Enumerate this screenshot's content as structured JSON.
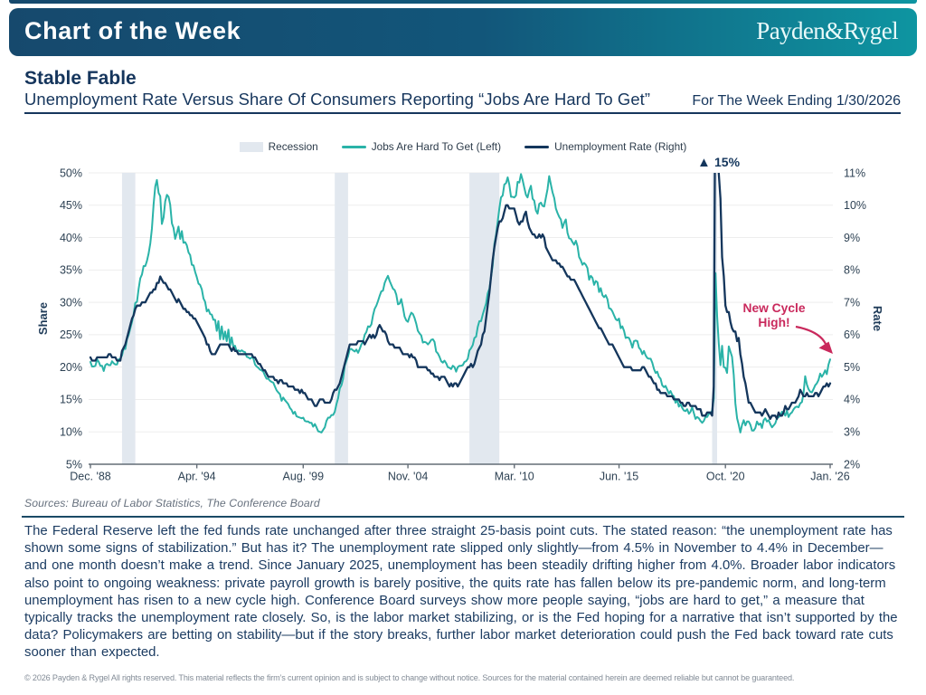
{
  "colors": {
    "navy": "#15355C",
    "teal_line": "#2AB3A8",
    "navy_line": "#14365C",
    "recession_band": "#E2E8EF",
    "gridline": "#EDEDED",
    "axis_line": "#636D76",
    "tick_label": "#2E4254",
    "accent_pink": "#C9295C",
    "header_gradient_left": "#16496D",
    "header_gradient_right": "#0E95A1"
  },
  "header": {
    "title": "Chart of the Week",
    "logo": "Payden&Rygel"
  },
  "title_block": {
    "title": "Stable Fable",
    "subtitle": "Unemployment Rate Versus Share Of Consumers Reporting “Jobs Are Hard To Get”",
    "week_ending": "For The Week Ending 1/30/2026"
  },
  "chart_data": {
    "type": "line",
    "x_start": "Dec 1988",
    "x_end": "Jan 2026",
    "x_frequency": "monthly",
    "x_tick_labels": [
      "Dec. '88",
      "Apr. '94",
      "Aug. '99",
      "Nov. '04",
      "Mar. '10",
      "Jun. '15",
      "Oct. '20",
      "Jan. '26"
    ],
    "x_tick_month_index": [
      0,
      64,
      128,
      191,
      255,
      318,
      382,
      445
    ],
    "left_axis": {
      "label": "Share",
      "ticks": [
        "5%",
        "10%",
        "15%",
        "20%",
        "25%",
        "30%",
        "35%",
        "40%",
        "45%",
        "50%"
      ],
      "range": [
        5,
        50
      ]
    },
    "right_axis": {
      "label": "Rate",
      "ticks": [
        "2%",
        "3%",
        "4%",
        "5%",
        "6%",
        "7%",
        "8%",
        "9%",
        "10%",
        "11%"
      ],
      "range": [
        2,
        11
      ]
    },
    "grid": "horizontal",
    "legend_position": "top-center",
    "legend": [
      {
        "swatch": "band",
        "label": "Recession"
      },
      {
        "swatch": "line-teal",
        "label": "Jobs Are Hard To Get (Left)"
      },
      {
        "swatch": "line-navy",
        "label": "Unemployment Rate (Right)"
      }
    ],
    "recessions_month_index": [
      [
        19,
        27
      ],
      [
        147,
        155
      ],
      [
        228,
        246
      ],
      [
        374,
        377
      ]
    ],
    "series": [
      {
        "name": "Jobs Are Hard To Get (Left)",
        "axis": "left",
        "color": "#2AB3A8",
        "values": [
          20.8,
          20.1,
          20.1,
          20.2,
          21.2,
          20.8,
          20.2,
          20.2,
          19.4,
          20.3,
          20.5,
          20.3,
          20.3,
          20.9,
          20.6,
          20.4,
          20.4,
          21.2,
          21.3,
          21.8,
          22.9,
          22.8,
          24.3,
          25.0,
          26.0,
          27.0,
          28.2,
          29.9,
          30.1,
          32.1,
          33.7,
          34.3,
          35.6,
          35.6,
          36.4,
          37.5,
          39.1,
          41.4,
          45.2,
          47.9,
          48.9,
          46.9,
          46.4,
          42.1,
          43.1,
          45.6,
          46.6,
          46.3,
          45.1,
          42.2,
          41.5,
          39.8,
          40.7,
          41.7,
          39.8,
          41.0,
          39.2,
          39.3,
          38.8,
          37.7,
          37.3,
          35.8,
          35.7,
          34.7,
          33.9,
          32.9,
          32.7,
          32.0,
          30.6,
          30.1,
          28.6,
          28.9,
          28.2,
          28.1,
          27.3,
          27.3,
          25.6,
          27.1,
          24.3,
          26.3,
          24.3,
          25.5,
          24.0,
          25.8,
          23.3,
          24.6,
          23.1,
          23.3,
          22.4,
          22.6,
          22.4,
          22.6,
          22.4,
          22.3,
          21.6,
          21.5,
          21.3,
          21.5,
          21.4,
          20.4,
          20.1,
          19.9,
          19.6,
          19.5,
          19.3,
          18.7,
          18.2,
          18.2,
          17.9,
          17.7,
          17.6,
          17.0,
          16.4,
          16.1,
          15.8,
          14.8,
          15.3,
          14.9,
          14.6,
          14.3,
          13.7,
          13.4,
          12.8,
          13.1,
          12.4,
          12.3,
          12.2,
          12.1,
          12.2,
          11.7,
          11.6,
          11.6,
          11.4,
          11.4,
          10.8,
          11.2,
          10.7,
          10.1,
          10.0,
          9.9,
          10.3,
          10.7,
          11.7,
          12.2,
          12.2,
          12.6,
          12.6,
          13.1,
          14.3,
          15.2,
          16.7,
          17.2,
          18.2,
          20.2,
          21.0,
          21.7,
          22.8,
          22.8,
          22.6,
          22.4,
          22.7,
          22.2,
          22.8,
          23.5,
          23.9,
          25.0,
          25.4,
          26.3,
          26.2,
          26.6,
          28.0,
          29.0,
          29.5,
          30.2,
          31.0,
          31.7,
          31.8,
          33.0,
          33.6,
          34.1,
          33.3,
          32.7,
          32.1,
          31.9,
          31.2,
          29.7,
          29.8,
          30.5,
          29.2,
          27.8,
          27.2,
          27.0,
          27.8,
          28.4,
          28.2,
          27.6,
          26.7,
          25.6,
          25.2,
          24.9,
          23.8,
          23.9,
          23.8,
          23.5,
          23.8,
          24.2,
          24.3,
          23.9,
          22.4,
          22.1,
          21.6,
          20.9,
          20.7,
          21.0,
          20.6,
          20.0,
          19.9,
          19.7,
          20.2,
          20.0,
          19.3,
          20.0,
          20.2,
          20.2,
          20.3,
          20.8,
          20.9,
          21.3,
          22.6,
          22.9,
          23.4,
          24.5,
          24.7,
          26.2,
          27.1,
          27.1,
          28.1,
          29.0,
          29.8,
          31.4,
          32.1,
          33.9,
          35.7,
          39.0,
          40.4,
          42.5,
          44.5,
          46.2,
          46.5,
          48.2,
          48.4,
          49.3,
          48.2,
          46.3,
          46.3,
          46.2,
          46.5,
          48.6,
          48.5,
          49.8,
          48.9,
          47.7,
          46.6,
          46.2,
          47.3,
          48.0,
          46.0,
          45.7,
          44.2,
          43.7,
          45.2,
          45.4,
          44.9,
          44.8,
          46.2,
          47.5,
          49.5,
          48.2,
          47.0,
          46.1,
          44.5,
          43.8,
          43.2,
          42.8,
          41.5,
          42.3,
          42.8,
          40.7,
          39.9,
          39.8,
          39.3,
          38.9,
          39.5,
          38.7,
          37.0,
          36.5,
          35.8,
          36.1,
          35.8,
          35.3,
          33.5,
          34.1,
          33.8,
          32.7,
          33.3,
          33.1,
          31.6,
          32.2,
          31.1,
          30.8,
          31.1,
          30.5,
          29.1,
          29.0,
          28.6,
          28.0,
          27.4,
          27.2,
          27.5,
          26.0,
          26.3,
          25.6,
          24.5,
          24.6,
          24.5,
          23.9,
          23.0,
          24.0,
          24.1,
          24.0,
          23.0,
          22.7,
          22.0,
          22.5,
          21.8,
          21.4,
          21.3,
          21.3,
          20.7,
          19.7,
          19.1,
          19.3,
          18.5,
          18.2,
          17.2,
          16.9,
          17.1,
          16.5,
          15.9,
          16.3,
          15.7,
          15.5,
          14.5,
          14.9,
          13.9,
          14.3,
          13.7,
          13.3,
          13.2,
          13.5,
          12.8,
          13.1,
          13.8,
          12.9,
          12.0,
          12.3,
          12.1,
          11.7,
          11.4,
          11.7,
          12.3,
          12.3,
          12.8,
          12.8,
          13.3,
          15.1,
          34.5,
          27.9,
          23.7,
          20.3,
          23.3,
          20.0,
          19.9,
          19.1,
          23.2,
          22.4,
          21.6,
          18.8,
          14.4,
          12.1,
          11.1,
          9.9,
          11.1,
          11.8,
          11.0,
          11.6,
          11.6,
          11.1,
          10.2,
          10.2,
          10.6,
          11.6,
          11.1,
          11.3,
          10.6,
          11.8,
          12.1,
          11.6,
          11.8,
          11.2,
          10.7,
          11.0,
          11.3,
          12.1,
          12.3,
          12.5,
          13.1,
          13.0,
          12.5,
          13.3,
          12.3,
          12.8,
          13.0,
          13.5,
          13.8,
          13.9,
          13.8,
          14.4,
          14.6,
          16.0,
          18.6,
          17.3,
          16.6,
          16.2,
          16.1,
          16.6,
          17.2,
          17.5,
          18.0,
          19.0,
          18.5,
          18.9,
          19.5,
          18.9,
          20.4,
          21.2
        ]
      },
      {
        "name": "Unemployment Rate (Right)",
        "axis": "right",
        "color": "#14365C",
        "values": [
          5.3,
          5.2,
          5.2,
          5.2,
          5.3,
          5.3,
          5.3,
          5.3,
          5.3,
          5.3,
          5.3,
          5.4,
          5.4,
          5.3,
          5.3,
          5.3,
          5.2,
          5.2,
          5.2,
          5.5,
          5.6,
          5.7,
          5.9,
          6.1,
          6.3,
          6.5,
          6.6,
          6.8,
          6.9,
          6.9,
          6.9,
          7.0,
          7.0,
          7.0,
          7.1,
          7.2,
          7.3,
          7.3,
          7.4,
          7.4,
          7.6,
          7.6,
          7.8,
          7.7,
          7.6,
          7.6,
          7.5,
          7.4,
          7.4,
          7.3,
          7.2,
          7.1,
          7.0,
          7.1,
          7.0,
          6.9,
          6.8,
          6.8,
          6.7,
          6.7,
          6.6,
          6.6,
          6.5,
          6.5,
          6.4,
          6.3,
          6.2,
          6.1,
          6.0,
          5.9,
          5.7,
          5.7,
          5.5,
          5.4,
          5.4,
          5.4,
          5.5,
          5.6,
          5.7,
          5.7,
          5.7,
          5.7,
          5.7,
          5.7,
          5.6,
          5.5,
          5.6,
          5.5,
          5.5,
          5.4,
          5.4,
          5.4,
          5.4,
          5.4,
          5.4,
          5.4,
          5.4,
          5.4,
          5.3,
          5.3,
          5.2,
          5.1,
          5.1,
          5.0,
          4.9,
          4.9,
          4.8,
          4.7,
          4.7,
          4.7,
          4.7,
          4.6,
          4.6,
          4.5,
          4.6,
          4.6,
          4.5,
          4.5,
          4.5,
          4.4,
          4.4,
          4.4,
          4.4,
          4.3,
          4.3,
          4.3,
          4.2,
          4.3,
          4.2,
          4.2,
          4.1,
          4.0,
          4.0,
          4.0,
          3.9,
          3.8,
          3.8,
          3.9,
          4.0,
          4.0,
          4.0,
          3.9,
          3.9,
          3.9,
          3.9,
          4.0,
          4.2,
          4.3,
          4.3,
          4.4,
          4.5,
          4.7,
          4.9,
          5.1,
          5.3,
          5.5,
          5.7,
          5.7,
          5.7,
          5.7,
          5.7,
          5.8,
          5.8,
          5.8,
          5.8,
          5.7,
          5.8,
          5.9,
          6.0,
          5.9,
          6.0,
          5.9,
          6.0,
          6.2,
          6.3,
          6.2,
          6.1,
          6.1,
          6.0,
          5.8,
          5.7,
          5.7,
          5.7,
          5.6,
          5.6,
          5.6,
          5.6,
          5.5,
          5.4,
          5.4,
          5.4,
          5.4,
          5.3,
          5.4,
          5.3,
          5.3,
          5.2,
          5.0,
          5.0,
          5.0,
          5.0,
          5.0,
          5.0,
          4.9,
          4.9,
          4.8,
          4.8,
          4.7,
          4.7,
          4.7,
          4.6,
          4.7,
          4.7,
          4.7,
          4.6,
          4.5,
          4.4,
          4.5,
          4.4,
          4.5,
          4.5,
          4.4,
          4.5,
          4.6,
          4.7,
          4.8,
          4.9,
          5.0,
          5.0,
          5.1,
          5.0,
          5.1,
          5.3,
          5.5,
          5.6,
          5.7,
          6.0,
          6.1,
          6.5,
          6.9,
          7.3,
          7.8,
          8.3,
          8.7,
          9.0,
          9.3,
          9.5,
          9.5,
          9.6,
          9.8,
          10.0,
          10.0,
          9.9,
          9.9,
          9.9,
          9.9,
          9.7,
          9.5,
          9.4,
          9.5,
          9.5,
          9.7,
          9.8,
          9.5,
          9.3,
          9.2,
          9.1,
          9.1,
          9.0,
          9.0,
          9.1,
          9.0,
          9.1,
          9.0,
          8.7,
          8.6,
          8.5,
          8.4,
          8.3,
          8.3,
          8.3,
          8.2,
          8.2,
          8.1,
          8.1,
          8.0,
          7.9,
          7.8,
          7.8,
          7.7,
          7.7,
          7.7,
          7.6,
          7.5,
          7.4,
          7.3,
          7.2,
          7.1,
          7.0,
          6.9,
          6.8,
          6.7,
          6.6,
          6.5,
          6.4,
          6.3,
          6.2,
          6.2,
          6.1,
          6.0,
          5.9,
          5.8,
          5.7,
          5.7,
          5.7,
          5.6,
          5.5,
          5.4,
          5.3,
          5.2,
          5.1,
          5.0,
          5.0,
          5.0,
          5.0,
          5.0,
          4.9,
          4.9,
          4.9,
          4.9,
          4.9,
          4.9,
          5.0,
          5.0,
          4.9,
          4.8,
          4.7,
          4.7,
          4.6,
          4.5,
          4.5,
          4.3,
          4.3,
          4.2,
          4.2,
          4.2,
          4.2,
          4.1,
          4.1,
          4.1,
          4.1,
          4.0,
          4.0,
          4.0,
          4.0,
          3.9,
          3.9,
          3.8,
          3.8,
          3.9,
          3.9,
          3.8,
          3.8,
          3.8,
          3.8,
          3.7,
          3.7,
          3.7,
          3.5,
          3.5,
          3.5,
          3.6,
          3.6,
          3.6,
          3.5,
          4.4,
          14.8,
          13.2,
          11.0,
          10.2,
          8.4,
          7.8,
          6.9,
          6.7,
          6.7,
          6.4,
          6.2,
          6.1,
          6.1,
          5.8,
          5.9,
          5.4,
          5.1,
          4.7,
          4.5,
          4.2,
          3.9,
          3.9,
          3.8,
          3.7,
          3.6,
          3.6,
          3.6,
          3.6,
          3.5,
          3.6,
          3.7,
          3.6,
          3.5,
          3.4,
          3.5,
          3.5,
          3.5,
          3.4,
          3.6,
          3.5,
          3.5,
          3.6,
          3.8,
          3.7,
          3.7,
          3.8,
          3.9,
          3.9,
          3.9,
          4.0,
          4.1,
          4.3,
          4.2,
          4.1,
          4.1,
          4.2,
          4.1,
          4.1,
          4.1,
          4.1,
          4.2,
          4.2,
          4.1,
          4.2,
          4.3,
          4.4,
          4.4,
          4.5,
          4.4,
          4.5
        ]
      }
    ],
    "annotations": [
      {
        "id": "spike-peak",
        "text": "▲ 15%",
        "color": "#14365C",
        "note": "unemployment spike clipped at axis top"
      },
      {
        "id": "new-cycle-high",
        "text_line1": "New Cycle",
        "text_line2": "High!",
        "color": "#C9295C"
      }
    ]
  },
  "sources": "Sources: Bureau of Labor Statistics, The Conference Board",
  "body": {
    "lines": [
      "The Federal Reserve left the fed funds rate unchanged after three straight 25-basis point cuts. The stated reason: “the unemployment rate has",
      "shown some signs of stabilization.” But has it? The unemployment rate slipped only slightly—from 4.5% in November to 4.4% in December—",
      "and one month doesn’t make a trend. Since January 2025, unemployment has been steadily drifting higher from 4.0%. Broader labor indicators",
      "also point to ongoing weakness: private payroll growth is barely positive, the quits rate has fallen below its pre-pandemic norm, and long-term",
      "unemployment has risen to a new cycle high. Conference Board surveys show more people saying, “jobs are hard to get,” a measure that",
      "typically tracks the unemployment rate closely. So, is the labor market stabilizing, or is the Fed hoping for a narrative that isn’t supported by the",
      "data? Policymakers are betting on stability—but if the story breaks, further labor market deterioration could push the Fed back toward rate cuts",
      "sooner than expected."
    ]
  },
  "footer": "© 2026 Payden & Rygel All rights reserved. This material reflects the firm’s current opinion and is subject to change without notice. Sources for the material contained herein are deemed reliable but cannot be guaranteed."
}
